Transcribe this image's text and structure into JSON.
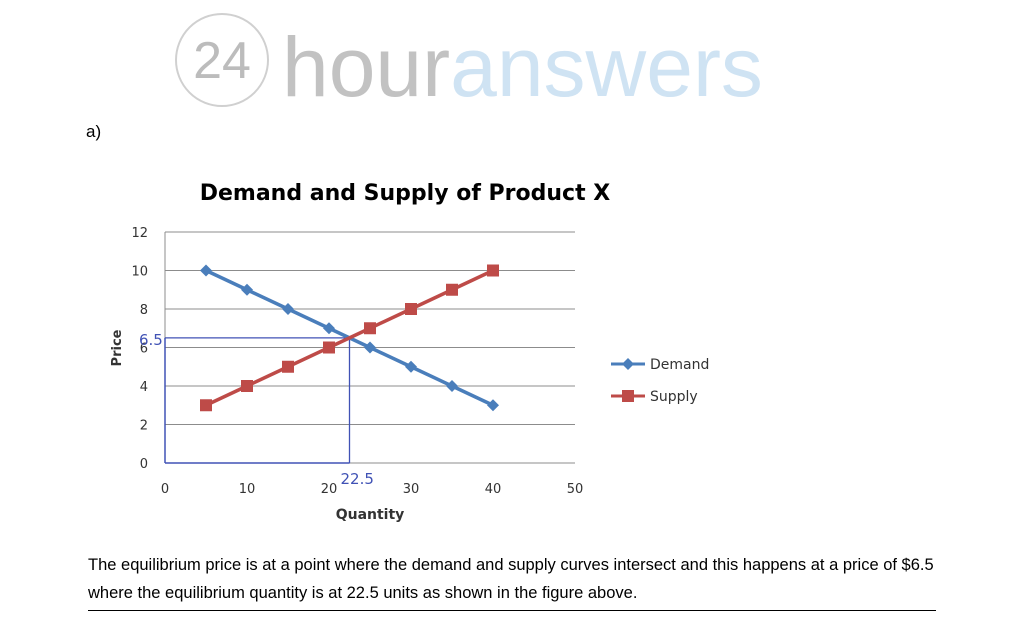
{
  "logo": {
    "number": "24",
    "word_hour": "hour",
    "word_answers": "answers"
  },
  "part_label": "a)",
  "chart_data": {
    "type": "line",
    "title": "Demand and Supply of Product X",
    "xlabel": "Quantity",
    "ylabel": "Price",
    "xlim": [
      0,
      50
    ],
    "ylim": [
      0,
      12
    ],
    "x_ticks": [
      0,
      10,
      20,
      30,
      40,
      50
    ],
    "y_ticks": [
      0,
      2,
      4,
      6,
      8,
      10,
      12
    ],
    "grid": "horizontal",
    "legend_position": "right",
    "series": [
      {
        "name": "Demand",
        "color": "#4a7ebb",
        "marker": "diamond",
        "x": [
          5,
          10,
          15,
          20,
          25,
          30,
          35,
          40
        ],
        "y": [
          10,
          9,
          8,
          7,
          6,
          5,
          4,
          3
        ]
      },
      {
        "name": "Supply",
        "color": "#be4b48",
        "marker": "square",
        "x": [
          5,
          10,
          15,
          20,
          25,
          30,
          35,
          40
        ],
        "y": [
          3,
          4,
          5,
          6,
          7,
          8,
          9,
          10
        ]
      }
    ],
    "equilibrium": {
      "x": 22.5,
      "y": 6.5,
      "x_label": "22.5",
      "y_label": "6.5",
      "color": "#4052b5"
    }
  },
  "conclusion": "The equilibrium price is at a point where the demand and supply curves intersect and this happens at a price of $6.5 where the equilibrium quantity is at 22.5 units as shown in the figure above."
}
